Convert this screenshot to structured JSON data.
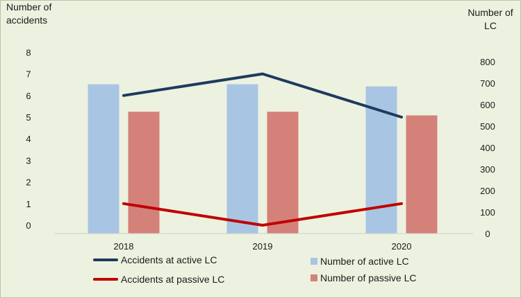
{
  "chart_data": {
    "type": "bar",
    "categories": [
      "2018",
      "2019",
      "2020"
    ],
    "y_left_label": "Number of accidents",
    "y_right_label": "Number of LC",
    "y_left_ticks": [
      "0",
      "1",
      "2",
      "3",
      "4",
      "5",
      "6",
      "7",
      "8"
    ],
    "y_right_ticks": [
      "0",
      "100",
      "200",
      "300",
      "400",
      "500",
      "600",
      "700",
      "800"
    ],
    "ylim_left": [
      0,
      8
    ],
    "ylim_right": [
      0,
      800
    ],
    "bar_series": [
      {
        "name": "Number of active LC",
        "axis": "right",
        "color": "#a9c5e4",
        "values": [
          695,
          695,
          685
        ]
      },
      {
        "name": "Number of passive LC",
        "axis": "right",
        "color": "#d4817a",
        "values": [
          567,
          567,
          550
        ]
      }
    ],
    "line_series": [
      {
        "name": "Accidents at active LC",
        "axis": "left",
        "color": "#1f3a5f",
        "values": [
          6,
          7,
          5
        ]
      },
      {
        "name": "Accidents at passive LC",
        "axis": "left",
        "color": "#c00000",
        "values": [
          1,
          0,
          1
        ]
      }
    ],
    "legend_placement": "bottom",
    "grid": false
  }
}
